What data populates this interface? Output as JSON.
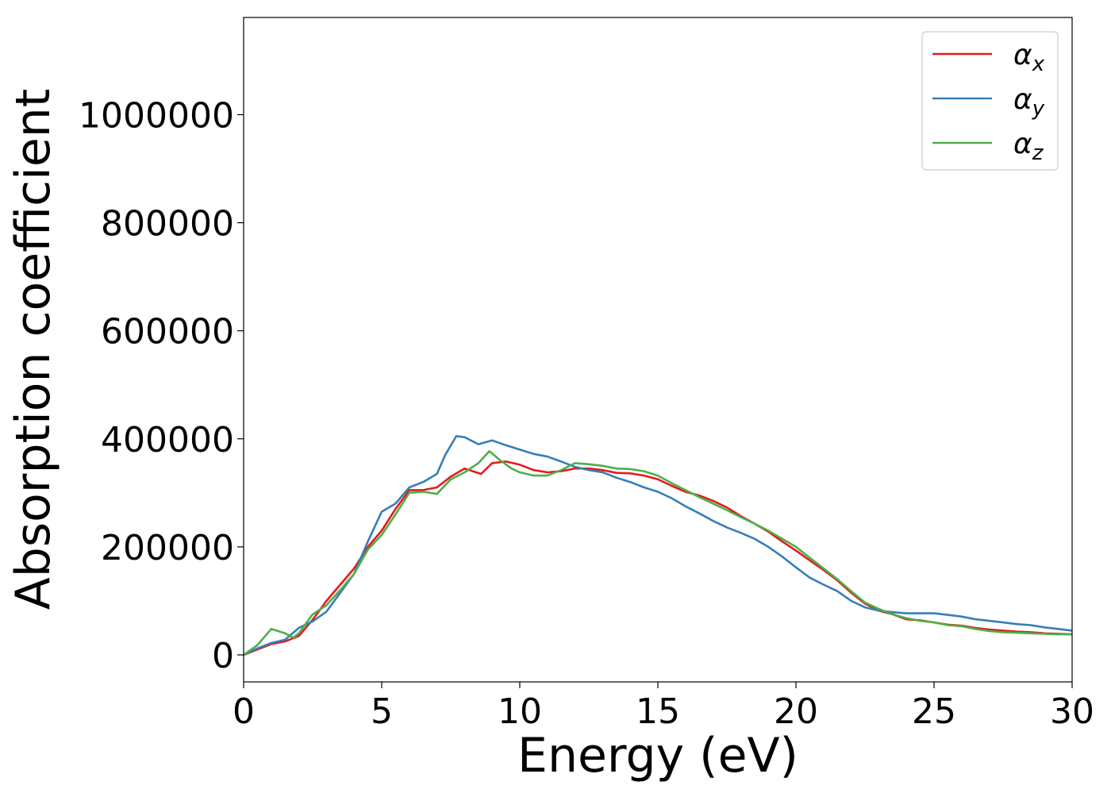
{
  "chart_data": {
    "type": "line",
    "title": "",
    "xlabel": "Energy (eV)",
    "ylabel": "Absorption coefficient",
    "xlim": [
      0,
      30
    ],
    "ylim": [
      -50000,
      1180000
    ],
    "xticks": [
      0,
      5,
      10,
      15,
      20,
      25,
      30
    ],
    "xtick_labels": [
      "0",
      "5",
      "10",
      "15",
      "20",
      "25",
      "30"
    ],
    "yticks": [
      0,
      200000,
      400000,
      600000,
      800000,
      1000000
    ],
    "ytick_labels": [
      "0",
      "200000",
      "400000",
      "600000",
      "800000",
      "1000000"
    ],
    "grid": false,
    "legend_position": "top-right",
    "series": [
      {
        "name": "α",
        "subscript": "x",
        "color": "#e41a1c",
        "x": [
          0,
          0.5,
          1,
          1.5,
          2,
          2.5,
          3,
          3.5,
          4,
          4.5,
          5,
          5.5,
          6,
          6.5,
          7,
          7.5,
          8,
          8.3,
          8.6,
          9,
          9.5,
          10,
          10.5,
          11,
          11.5,
          12,
          12.5,
          13,
          13.5,
          14,
          14.5,
          15,
          15.5,
          16,
          16.5,
          17,
          17.5,
          18,
          18.5,
          19,
          19.5,
          20,
          20.5,
          21,
          21.5,
          22,
          22.5,
          23,
          23.5,
          24,
          24.5,
          25,
          25.5,
          26,
          26.5,
          27,
          27.5,
          28,
          28.5,
          29,
          29.5,
          30
        ],
        "y": [
          0,
          10000,
          20000,
          25000,
          35000,
          65000,
          100000,
          130000,
          160000,
          200000,
          230000,
          270000,
          305000,
          305000,
          310000,
          330000,
          345000,
          340000,
          335000,
          355000,
          358000,
          352000,
          342000,
          338000,
          340000,
          345000,
          345000,
          342000,
          337000,
          336000,
          332000,
          325000,
          313000,
          302000,
          295000,
          285000,
          273000,
          257000,
          243000,
          228000,
          210000,
          193000,
          175000,
          157000,
          138000,
          115000,
          95000,
          82000,
          75000,
          66000,
          64000,
          60000,
          56000,
          54000,
          50000,
          47000,
          45000,
          43000,
          42000,
          40000,
          39000,
          38000
        ]
      },
      {
        "name": "α",
        "subscript": "y",
        "color": "#377eb8",
        "x": [
          0,
          0.5,
          1,
          1.5,
          2,
          2.5,
          3,
          3.5,
          4,
          4.5,
          5,
          5.5,
          6,
          6.5,
          7,
          7.3,
          7.7,
          8,
          8.5,
          9,
          9.5,
          10,
          10.5,
          11,
          11.5,
          12,
          12.5,
          13,
          13.5,
          14,
          14.5,
          15,
          15.5,
          16,
          16.5,
          17,
          17.5,
          18,
          18.5,
          19,
          19.5,
          20,
          20.5,
          21,
          21.5,
          22,
          22.5,
          23,
          23.5,
          24,
          24.5,
          25,
          25.5,
          26,
          26.5,
          27,
          27.5,
          28,
          28.5,
          29,
          29.5,
          30
        ],
        "y": [
          0,
          12000,
          22000,
          28000,
          50000,
          62000,
          80000,
          115000,
          150000,
          210000,
          265000,
          280000,
          310000,
          320000,
          335000,
          370000,
          405000,
          403000,
          390000,
          397000,
          388000,
          380000,
          372000,
          367000,
          358000,
          348000,
          342000,
          338000,
          328000,
          320000,
          310000,
          302000,
          290000,
          275000,
          262000,
          248000,
          236000,
          226000,
          215000,
          200000,
          182000,
          162000,
          143000,
          130000,
          118000,
          100000,
          88000,
          82000,
          79000,
          77000,
          77000,
          77000,
          74000,
          71000,
          66000,
          63000,
          60000,
          57000,
          55000,
          51000,
          48000,
          45000
        ]
      },
      {
        "name": "α",
        "subscript": "z",
        "color": "#4daf4a",
        "x": [
          0,
          0.5,
          1,
          1.5,
          1.8,
          2,
          2.5,
          3,
          3.5,
          4,
          4.5,
          5,
          5.5,
          6,
          6.5,
          7,
          7.5,
          8,
          8.5,
          8.9,
          9.3,
          9.7,
          10,
          10.5,
          11,
          11.5,
          12,
          12.5,
          13,
          13.5,
          14,
          14.5,
          15,
          15.5,
          16,
          16.5,
          17,
          17.5,
          18,
          18.5,
          19,
          19.5,
          20,
          20.5,
          21,
          21.5,
          22,
          22.5,
          23,
          23.5,
          24,
          24.5,
          25,
          25.5,
          26,
          26.5,
          27,
          27.5,
          28,
          28.5,
          29,
          29.5,
          30
        ],
        "y": [
          0,
          18000,
          48000,
          40000,
          32000,
          40000,
          75000,
          92000,
          120000,
          150000,
          195000,
          222000,
          260000,
          300000,
          302000,
          298000,
          325000,
          338000,
          355000,
          377000,
          360000,
          345000,
          338000,
          332000,
          332000,
          342000,
          355000,
          353000,
          350000,
          345000,
          344000,
          340000,
          332000,
          318000,
          305000,
          292000,
          280000,
          268000,
          255000,
          243000,
          230000,
          215000,
          200000,
          180000,
          160000,
          140000,
          118000,
          97000,
          85000,
          75000,
          68000,
          63000,
          60000,
          55000,
          53000,
          48000,
          44000,
          42000,
          41000,
          40000,
          39000,
          38000,
          38000
        ]
      }
    ]
  }
}
